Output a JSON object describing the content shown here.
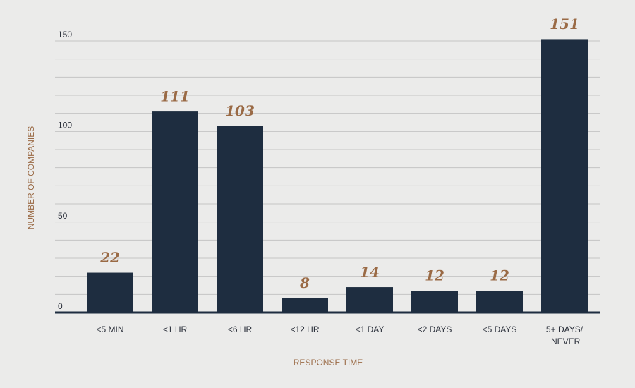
{
  "chart_data": {
    "type": "bar",
    "x_label": "RESPONSE TIME",
    "y_label": "NUMBER OF COMPANIES",
    "categories": [
      "<5 MIN",
      "<1 HR",
      "<6 HR",
      "<12 HR",
      "<1 DAY",
      "<2 DAYS",
      "<5 DAYS",
      "5+ DAYS/\nNEVER"
    ],
    "values": [
      22,
      111,
      103,
      8,
      14,
      12,
      12,
      151
    ],
    "color": "#1e2d40",
    "ylim": [
      0,
      150
    ],
    "yticks": [
      0,
      50,
      100,
      150
    ],
    "minor_yticks": [
      10,
      20,
      30,
      40,
      60,
      70,
      80,
      90,
      110,
      120,
      130,
      140
    ],
    "grid": true
  }
}
